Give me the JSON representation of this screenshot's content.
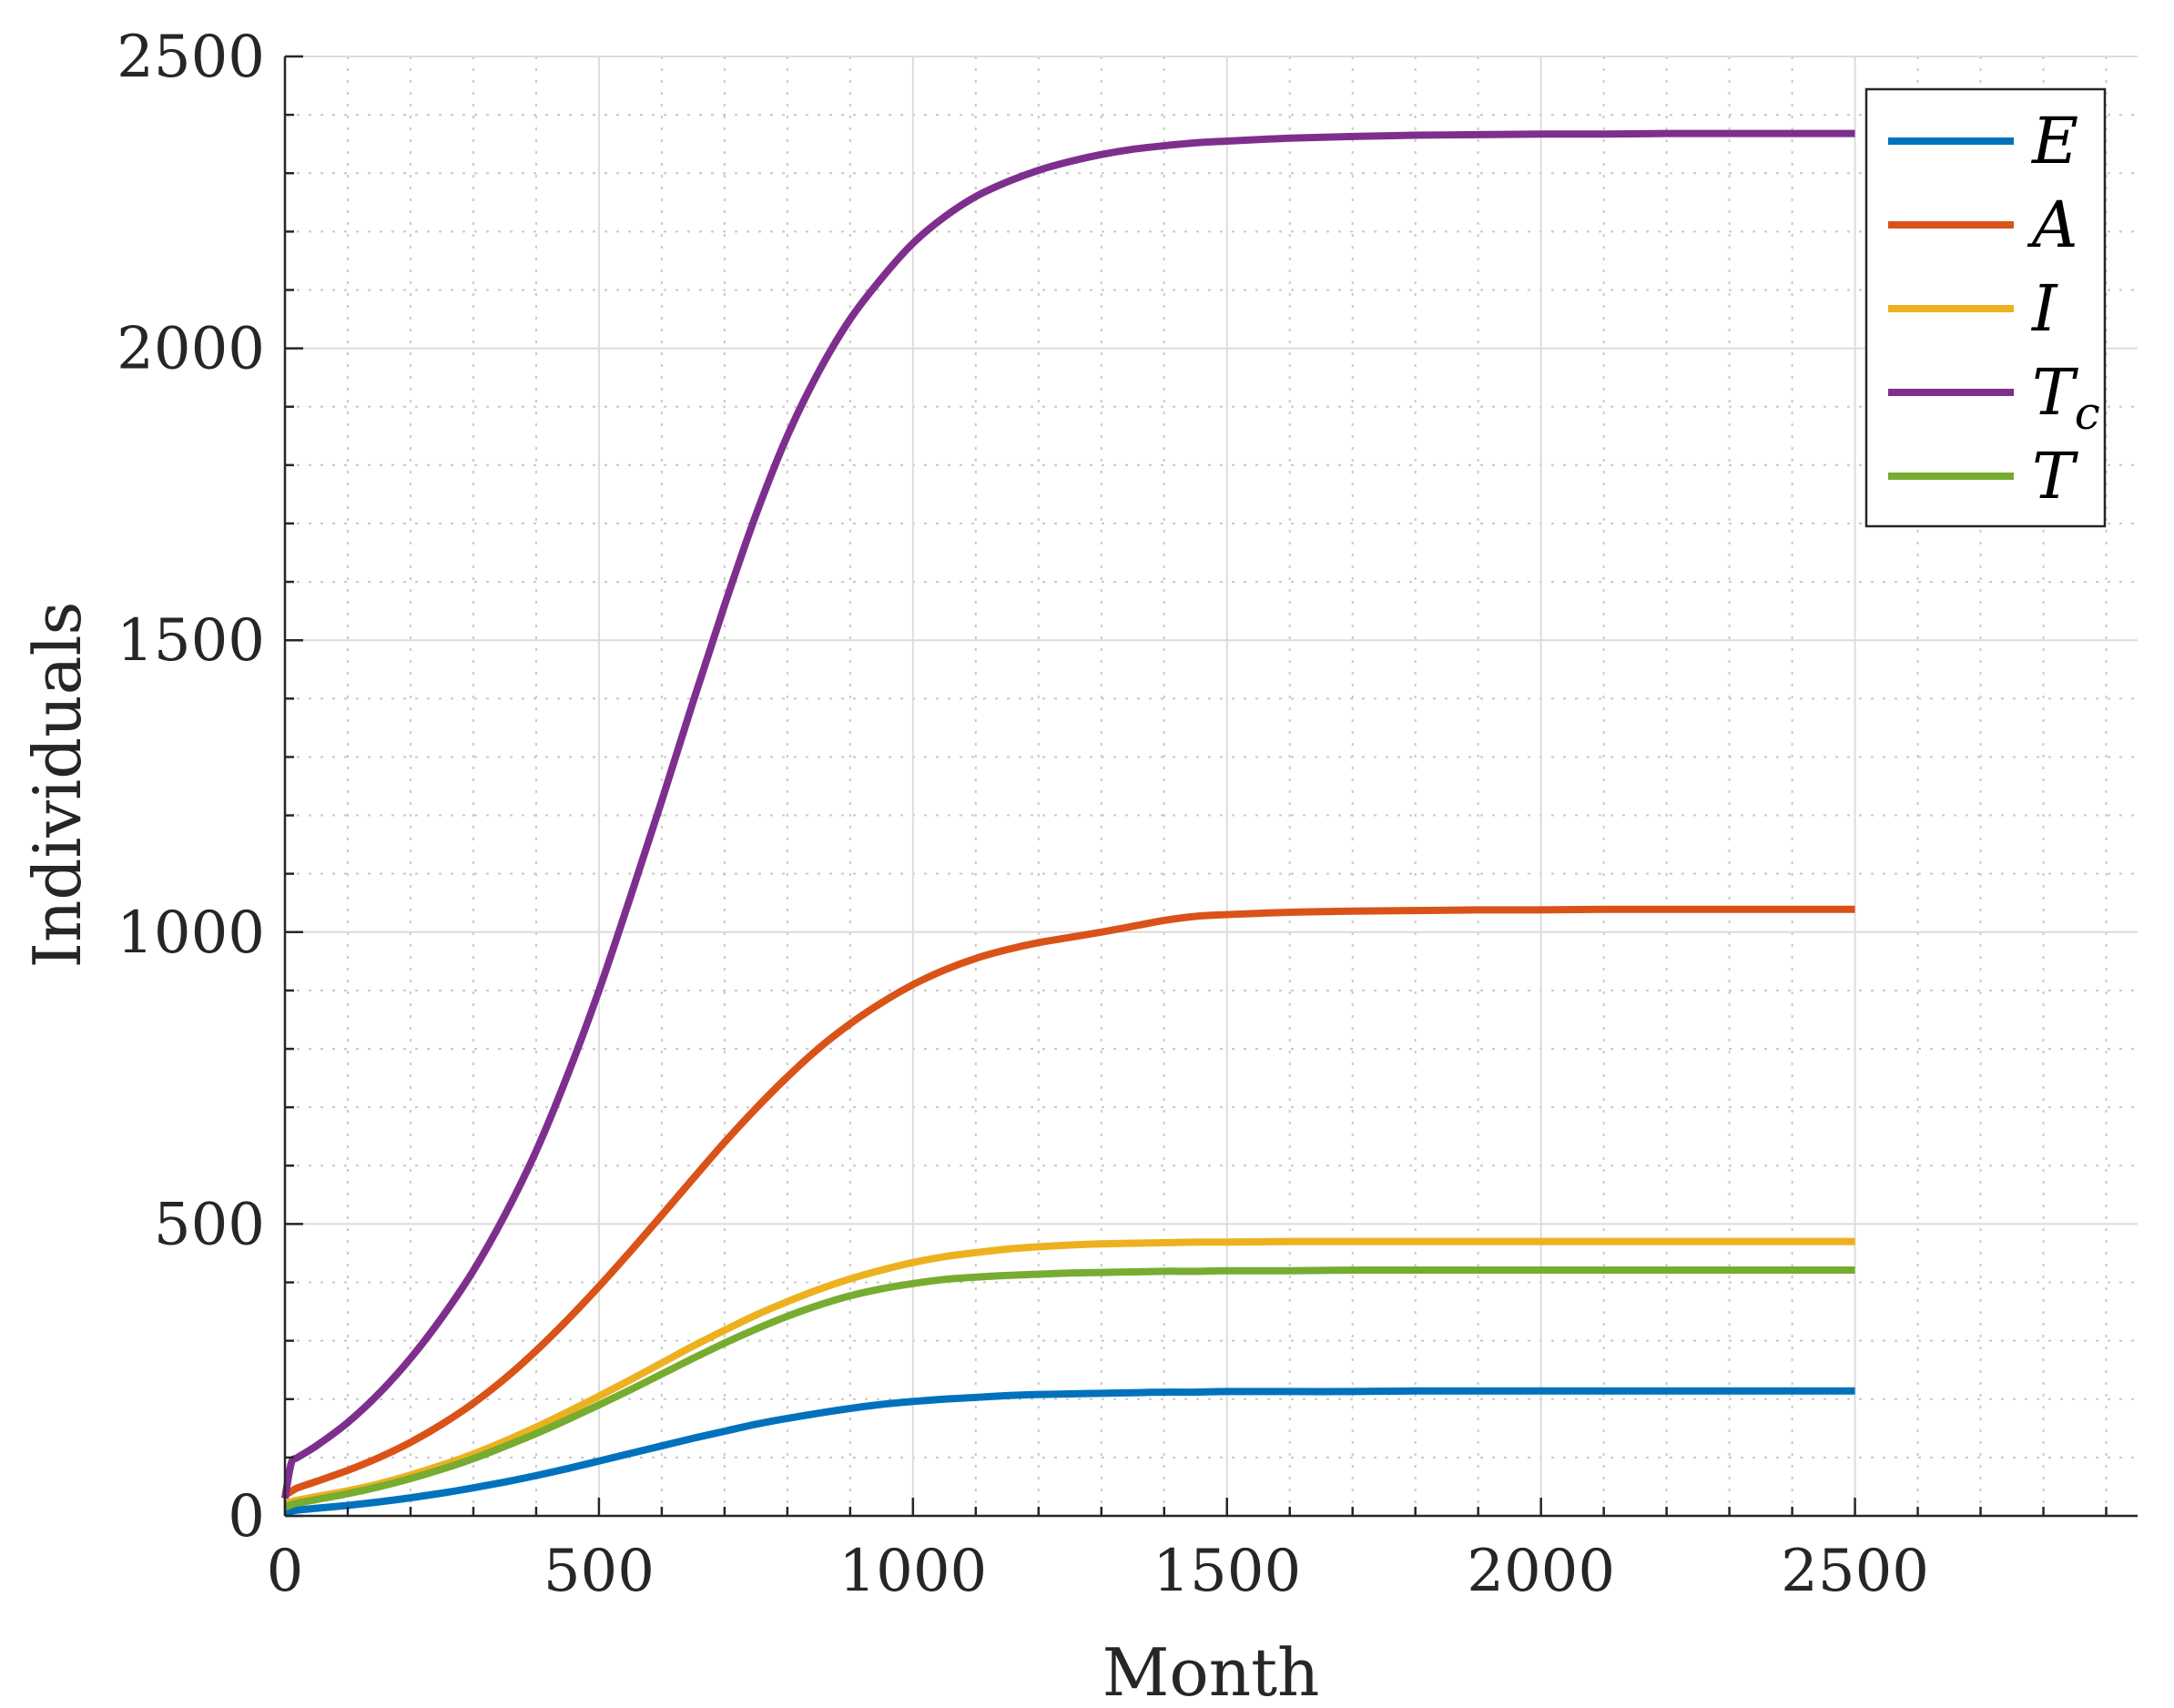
{
  "chart_data": {
    "type": "line",
    "title": "",
    "xlabel": "Month",
    "ylabel": "Individuals",
    "xlim": [
      0,
      2950
    ],
    "ylim": [
      0,
      2500
    ],
    "x_ticks": [
      0,
      500,
      1000,
      1500,
      2000,
      2500
    ],
    "y_ticks": [
      0,
      500,
      1000,
      1500,
      2000,
      2500
    ],
    "x_tick_labels": [
      "0",
      "500",
      "1000",
      "1500",
      "2000",
      "2500"
    ],
    "y_tick_labels": [
      "0",
      "500",
      "1000",
      "1500",
      "2000",
      "2500"
    ],
    "x_minor_ticks": [
      100,
      200,
      300,
      400,
      600,
      700,
      800,
      900,
      1100,
      1200,
      1300,
      1400,
      1600,
      1700,
      1800,
      1900,
      2100,
      2200,
      2300,
      2400,
      2600,
      2700,
      2800,
      2900
    ],
    "y_minor_ticks": [
      100,
      200,
      300,
      400,
      600,
      700,
      800,
      900,
      1100,
      1200,
      1300,
      1400,
      1600,
      1700,
      1800,
      1900,
      2100,
      2200,
      2300,
      2400
    ],
    "grid": true,
    "minor_grid": true,
    "legend_position": "top-right",
    "x": [
      0,
      10,
      20,
      50,
      100,
      150,
      200,
      250,
      300,
      350,
      400,
      450,
      500,
      550,
      600,
      650,
      700,
      750,
      800,
      850,
      900,
      950,
      1000,
      1050,
      1100,
      1150,
      1200,
      1250,
      1300,
      1350,
      1400,
      1450,
      1500,
      1600,
      1700,
      1800,
      1900,
      2000,
      2100,
      2200,
      2300,
      2400,
      2500
    ],
    "series": [
      {
        "name": "E",
        "label_main": "E",
        "label_sub": "",
        "color": "#0072bd",
        "values": [
          5,
          8,
          10,
          13,
          18,
          24,
          31,
          39,
          48,
          58,
          69,
          81,
          94,
          107,
          120,
          133,
          145,
          157,
          167,
          176,
          184,
          191,
          196,
          200,
          203,
          206,
          208,
          209,
          210,
          211,
          212,
          212,
          213,
          213,
          213,
          214,
          214,
          214,
          214,
          214,
          214,
          214,
          214
        ]
      },
      {
        "name": "A",
        "label_main": "A",
        "label_sub": "",
        "color": "#d95319",
        "values": [
          35,
          42,
          48,
          59,
          78,
          100,
          126,
          157,
          193,
          235,
          283,
          336,
          393,
          453,
          515,
          578,
          640,
          698,
          752,
          801,
          843,
          879,
          910,
          935,
          955,
          970,
          982,
          991,
          1000,
          1010,
          1020,
          1027,
          1030,
          1034,
          1036,
          1037,
          1038,
          1038,
          1039,
          1039,
          1039,
          1039,
          1039
        ]
      },
      {
        "name": "I",
        "label_main": "I",
        "label_sub": "",
        "color": "#edb120",
        "values": [
          20,
          24,
          27,
          33,
          43,
          55,
          70,
          87,
          106,
          128,
          152,
          178,
          205,
          233,
          262,
          291,
          318,
          344,
          367,
          388,
          406,
          421,
          434,
          444,
          451,
          457,
          461,
          464,
          466,
          467,
          468,
          469,
          469,
          470,
          470,
          470,
          470,
          470,
          470,
          470,
          470,
          470,
          470
        ]
      },
      {
        "name": "Tc",
        "label_main": "T",
        "label_sub": "c",
        "color": "#7e2f8e",
        "values": [
          30,
          90,
          100,
          120,
          160,
          210,
          270,
          340,
          420,
          515,
          625,
          755,
          900,
          1060,
          1225,
          1395,
          1560,
          1715,
          1850,
          1960,
          2050,
          2120,
          2180,
          2225,
          2260,
          2285,
          2305,
          2320,
          2332,
          2341,
          2347,
          2352,
          2355,
          2360,
          2363,
          2365,
          2366,
          2367,
          2367,
          2368,
          2368,
          2368,
          2368
        ]
      },
      {
        "name": "T",
        "label_main": "T",
        "label_sub": "",
        "color": "#77ac30",
        "values": [
          15,
          19,
          22,
          28,
          38,
          50,
          64,
          80,
          98,
          119,
          141,
          165,
          190,
          216,
          243,
          270,
          296,
          320,
          342,
          361,
          377,
          389,
          398,
          405,
          409,
          412,
          414,
          416,
          417,
          418,
          419,
          419,
          420,
          420,
          421,
          421,
          421,
          421,
          421,
          421,
          421,
          421,
          421
        ]
      }
    ]
  }
}
